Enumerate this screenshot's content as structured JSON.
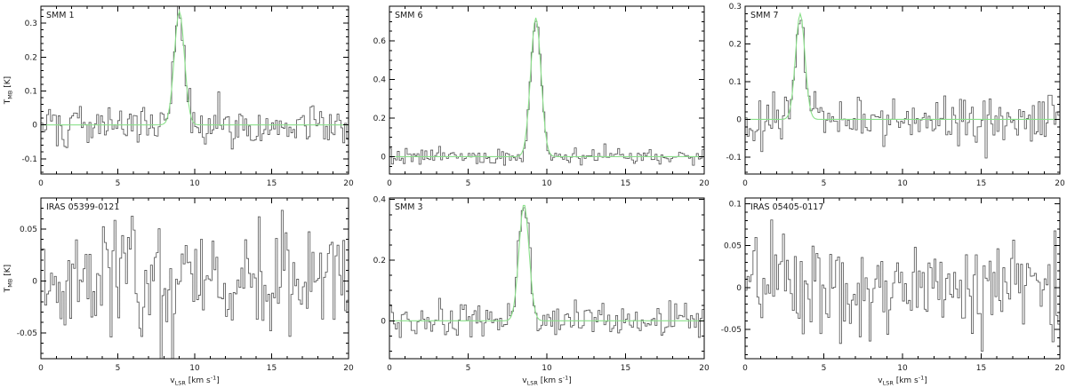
{
  "figure": {
    "description": "Grid of six molecular line spectra with Gaussian fits",
    "xlabel": {
      "parts": [
        {
          "t": "v"
        },
        {
          "t": "LSR",
          "sub": true
        },
        {
          "t": " [km s"
        },
        {
          "t": "-1",
          "sup": true
        },
        {
          "t": "]"
        }
      ]
    },
    "ylabel": {
      "parts": [
        {
          "t": "T"
        },
        {
          "t": "MB",
          "sub": true
        },
        {
          "t": " [K]"
        }
      ]
    },
    "colors": {
      "spectrum": "#4f4f4f",
      "fit": "#8ae08a",
      "axis": "#000000",
      "label": "#1a1a1a"
    }
  },
  "chart_data": [
    {
      "type": "line",
      "title": "SMM 1",
      "xlim": [
        0,
        20
      ],
      "ylim": [
        -0.145,
        0.35
      ],
      "xticks": [
        0,
        5,
        10,
        15,
        20
      ],
      "xtick_labels": [
        "0",
        "5",
        "10",
        "15",
        "20"
      ],
      "yticks": [
        -0.1,
        0,
        0.1,
        0.2,
        0.3
      ],
      "ytick_labels": [
        "-0.1",
        "0",
        "0.1",
        "0.2",
        "0.3"
      ],
      "x_minor": 1,
      "y_minor": 0.02,
      "channels": 160,
      "noise_sigma": 0.03,
      "seed": 101,
      "fit": {
        "amplitude": 0.335,
        "center": 9.0,
        "sigma": 0.33
      },
      "show_ylabel": true,
      "show_xlabel": false,
      "series": [
        {
          "name": "spectrum"
        },
        {
          "name": "gaussian-fit"
        }
      ]
    },
    {
      "type": "line",
      "title": "SMM 6",
      "xlim": [
        0,
        20
      ],
      "ylim": [
        -0.09,
        0.78
      ],
      "xticks": [
        0,
        5,
        10,
        15,
        20
      ],
      "xtick_labels": [
        "0",
        "5",
        "10",
        "15",
        "20"
      ],
      "yticks": [
        0,
        0.2,
        0.4,
        0.6
      ],
      "ytick_labels": [
        "0",
        "0.2",
        "0.4",
        "0.6"
      ],
      "x_minor": 1,
      "y_minor": 0.05,
      "channels": 160,
      "noise_sigma": 0.022,
      "seed": 202,
      "fit": {
        "amplitude": 0.72,
        "center": 9.3,
        "sigma": 0.33
      },
      "show_ylabel": false,
      "show_xlabel": false,
      "series": [
        {
          "name": "spectrum"
        },
        {
          "name": "gaussian-fit"
        }
      ]
    },
    {
      "type": "line",
      "title": "SMM 7",
      "xlim": [
        0,
        20
      ],
      "ylim": [
        -0.145,
        0.3
      ],
      "xticks": [
        0,
        5,
        10,
        15,
        20
      ],
      "xtick_labels": [
        "0",
        "5",
        "10",
        "15",
        "20"
      ],
      "yticks": [
        -0.1,
        0,
        0.1,
        0.2,
        0.3
      ],
      "ytick_labels": [
        "-0.1",
        "0",
        "0.1",
        "0.2",
        "0.3"
      ],
      "x_minor": 1,
      "y_minor": 0.02,
      "channels": 160,
      "noise_sigma": 0.031,
      "seed": 303,
      "fit": {
        "amplitude": 0.28,
        "center": 3.5,
        "sigma": 0.3
      },
      "show_ylabel": false,
      "show_xlabel": false,
      "series": [
        {
          "name": "spectrum"
        },
        {
          "name": "gaussian-fit"
        }
      ]
    },
    {
      "type": "line",
      "title": "IRAS 05399-0121",
      "xlim": [
        0,
        20
      ],
      "ylim": [
        -0.075,
        0.08
      ],
      "xticks": [
        0,
        5,
        10,
        15,
        20
      ],
      "xtick_labels": [
        "0",
        "5",
        "10",
        "15",
        "20"
      ],
      "yticks": [
        -0.05,
        0,
        0.05
      ],
      "ytick_labels": [
        "-0.05",
        "0",
        "0.05"
      ],
      "x_minor": 1,
      "y_minor": 0.01,
      "channels": 160,
      "noise_sigma": 0.027,
      "seed": 404,
      "fit": null,
      "show_ylabel": true,
      "show_xlabel": true,
      "series": [
        {
          "name": "spectrum"
        }
      ]
    },
    {
      "type": "line",
      "title": "SMM 3",
      "xlim": [
        0,
        20
      ],
      "ylim": [
        -0.125,
        0.405
      ],
      "xticks": [
        0,
        5,
        10,
        15,
        20
      ],
      "xtick_labels": [
        "0",
        "5",
        "10",
        "15",
        "20"
      ],
      "yticks": [
        0,
        0.2,
        0.4
      ],
      "ytick_labels": [
        "0",
        "0.2",
        "0.4"
      ],
      "x_minor": 1,
      "y_minor": 0.05,
      "channels": 160,
      "noise_sigma": 0.03,
      "seed": 505,
      "fit": {
        "amplitude": 0.385,
        "center": 8.55,
        "sigma": 0.32
      },
      "show_ylabel": false,
      "show_xlabel": true,
      "series": [
        {
          "name": "spectrum"
        },
        {
          "name": "gaussian-fit"
        }
      ]
    },
    {
      "type": "line",
      "title": "IRAS 05405-0117",
      "xlim": [
        0,
        20
      ],
      "ylim": [
        -0.085,
        0.107
      ],
      "xticks": [
        0,
        5,
        10,
        15,
        20
      ],
      "xtick_labels": [
        "0",
        "5",
        "10",
        "15",
        "20"
      ],
      "yticks": [
        -0.05,
        0,
        0.05,
        0.1
      ],
      "ytick_labels": [
        "-0.05",
        "0",
        "0.05",
        "0.1"
      ],
      "x_minor": 1,
      "y_minor": 0.01,
      "channels": 160,
      "noise_sigma": 0.032,
      "seed": 606,
      "fit": null,
      "show_ylabel": false,
      "show_xlabel": true,
      "series": [
        {
          "name": "spectrum"
        }
      ]
    }
  ]
}
